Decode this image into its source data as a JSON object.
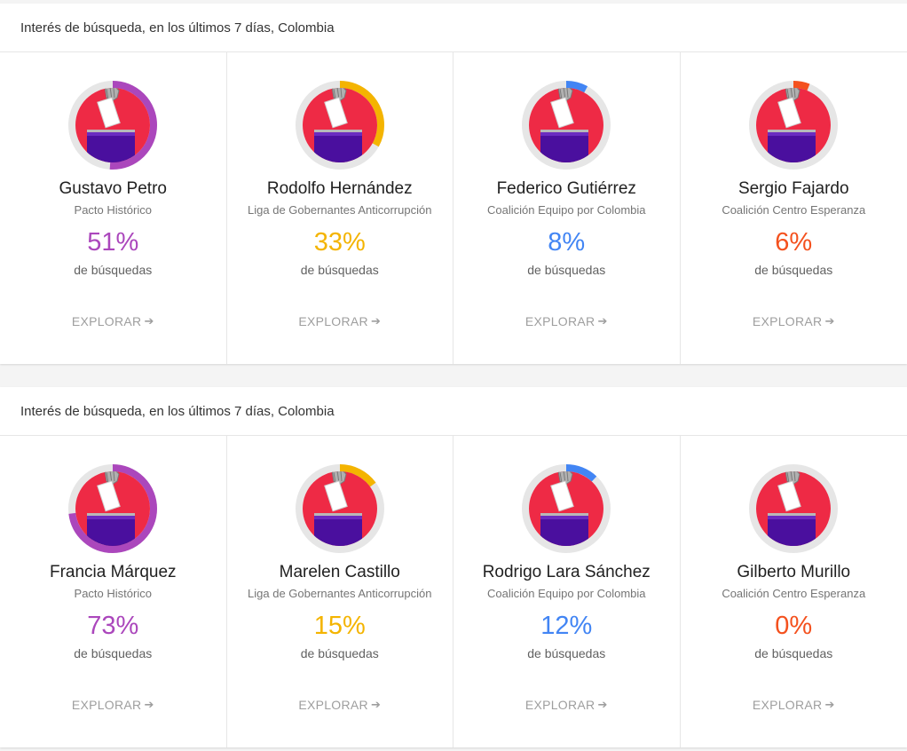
{
  "panels": [
    {
      "header": "Interés de búsqueda, en los últimos 7 días, Colombia",
      "cards": [
        {
          "name": "Gustavo Petro",
          "party": "Pacto Histórico",
          "percent_label": "51%",
          "share": 0.51,
          "color": "#ab47bc",
          "sub": "de búsquedas",
          "explore": "EXPLORAR"
        },
        {
          "name": "Rodolfo Hernández",
          "party": "Liga de Gobernantes Anticorrupción",
          "percent_label": "33%",
          "share": 0.33,
          "color": "#f4b400",
          "sub": "de búsquedas",
          "explore": "EXPLORAR"
        },
        {
          "name": "Federico Gutiérrez",
          "party": "Coalición Equipo por Colombia",
          "percent_label": "8%",
          "share": 0.08,
          "color": "#4285f4",
          "sub": "de búsquedas",
          "explore": "EXPLORAR"
        },
        {
          "name": "Sergio Fajardo",
          "party": "Coalición Centro Esperanza",
          "percent_label": "6%",
          "share": 0.06,
          "color": "#f4511e",
          "sub": "de búsquedas",
          "explore": "EXPLORAR"
        }
      ]
    },
    {
      "header": "Interés de búsqueda, en los últimos 7 días, Colombia",
      "cards": [
        {
          "name": "Francia Márquez",
          "party": "Pacto Histórico",
          "percent_label": "73%",
          "share": 0.73,
          "color": "#ab47bc",
          "sub": "de búsquedas",
          "explore": "EXPLORAR"
        },
        {
          "name": "Marelen Castillo",
          "party": "Liga de Gobernantes Anticorrupción",
          "percent_label": "15%",
          "share": 0.15,
          "color": "#f4b400",
          "sub": "de búsquedas",
          "explore": "EXPLORAR"
        },
        {
          "name": "Rodrigo Lara Sánchez",
          "party": "Coalición Equipo por Colombia",
          "percent_label": "12%",
          "share": 0.12,
          "color": "#4285f4",
          "sub": "de búsquedas",
          "explore": "EXPLORAR"
        },
        {
          "name": "Gilberto Murillo",
          "party": "Coalición Centro Esperanza",
          "percent_label": "0%",
          "share": 0.0,
          "color": "#f4511e",
          "sub": "de búsquedas",
          "explore": "EXPLORAR"
        }
      ]
    }
  ],
  "icons": {
    "avatar": "ballot-box-icon",
    "explore": "arrow-right-icon"
  },
  "colors": {
    "ring_track": "#e6e6e6",
    "avatar_bg": "#ee2a45",
    "ballot_box": "#4a0f9e"
  }
}
